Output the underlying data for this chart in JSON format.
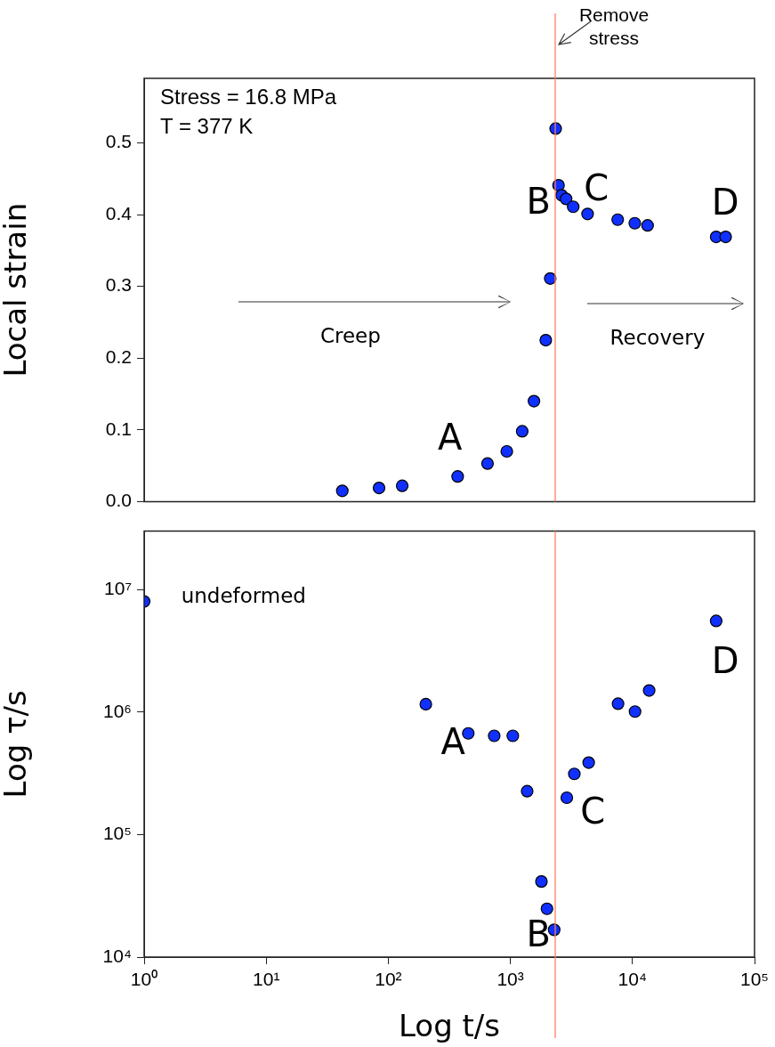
{
  "chart_data": [
    {
      "type": "scatter",
      "ylabel": "Local strain",
      "log": "x",
      "xlim": [
        1,
        100000
      ],
      "ylim": [
        0,
        0.59
      ],
      "yticks": [
        {
          "value": 0,
          "label": "0.0"
        },
        {
          "value": 0.1,
          "label": "0.1"
        },
        {
          "value": 0.2,
          "label": "0.2"
        },
        {
          "value": 0.3,
          "label": "0.3"
        },
        {
          "value": 0.4,
          "label": "0.4"
        },
        {
          "value": 0.5,
          "label": "0.5"
        }
      ],
      "tick_labels": "y",
      "grid": false,
      "legend": false,
      "marker": "circle",
      "series": [
        {
          "color": "#1030ff",
          "x": [
            42,
            84,
            130,
            370,
            650,
            935,
            1250,
            1560,
            1950,
            2120,
            2350,
            2480,
            2630,
            2860,
            3270,
            4290,
            7570,
            10450,
            13300,
            48500,
            58000
          ],
          "values": [
            0.015,
            0.019,
            0.022,
            0.035,
            0.053,
            0.07,
            0.098,
            0.14,
            0.225,
            0.311,
            0.52,
            0.441,
            0.427,
            0.422,
            0.411,
            0.401,
            0.393,
            0.388,
            0.385,
            0.369,
            0.369
          ]
        }
      ],
      "ref_lines": [
        {
          "axis": "x",
          "value": 2330,
          "label": "Remove stress",
          "color": "#ff8060"
        }
      ],
      "annotations": [
        "Stress = 16.8 MPa",
        "T = 377 K",
        "A",
        "B",
        "C",
        "D",
        "Creep",
        "Recovery"
      ]
    },
    {
      "type": "scatter",
      "xlabel": "Log t/s",
      "ylabel": "Log τ/s",
      "log": "xy",
      "xlim": [
        1,
        100000
      ],
      "ylim": [
        10000,
        30000000
      ],
      "xticks": [
        {
          "value": 1,
          "label": "10⁰"
        },
        {
          "value": 10,
          "label": "10¹"
        },
        {
          "value": 100,
          "label": "10²"
        },
        {
          "value": 1000,
          "label": "10³"
        },
        {
          "value": 10000,
          "label": "10⁴"
        },
        {
          "value": 100000,
          "label": "10⁵"
        }
      ],
      "yticks": [
        {
          "value": 10000,
          "label": "10⁴"
        },
        {
          "value": 100000,
          "label": "10⁵"
        },
        {
          "value": 1000000,
          "label": "10⁶"
        },
        {
          "value": 10000000,
          "label": "10⁷"
        }
      ],
      "grid": false,
      "legend": false,
      "marker": "circle",
      "series": [
        {
          "color": "#1030ff",
          "x": [
            1,
            203,
            452,
            737,
            1047,
            1372,
            1796,
            1994,
            2284,
            2900,
            3340,
            4380,
            7620,
            10500,
            13700,
            48500
          ],
          "values": [
            8000000,
            1160000,
            670000,
            640000,
            640000,
            226000,
            41400,
            24800,
            16700,
            200000,
            313000,
            387000,
            1170000,
            1010000,
            1500000,
            5550000
          ]
        }
      ],
      "ref_lines": [
        {
          "axis": "x",
          "value": 2330,
          "color": "#ff8060"
        }
      ],
      "annotations": [
        "undeformed",
        "A",
        "B",
        "C",
        "D"
      ]
    }
  ]
}
